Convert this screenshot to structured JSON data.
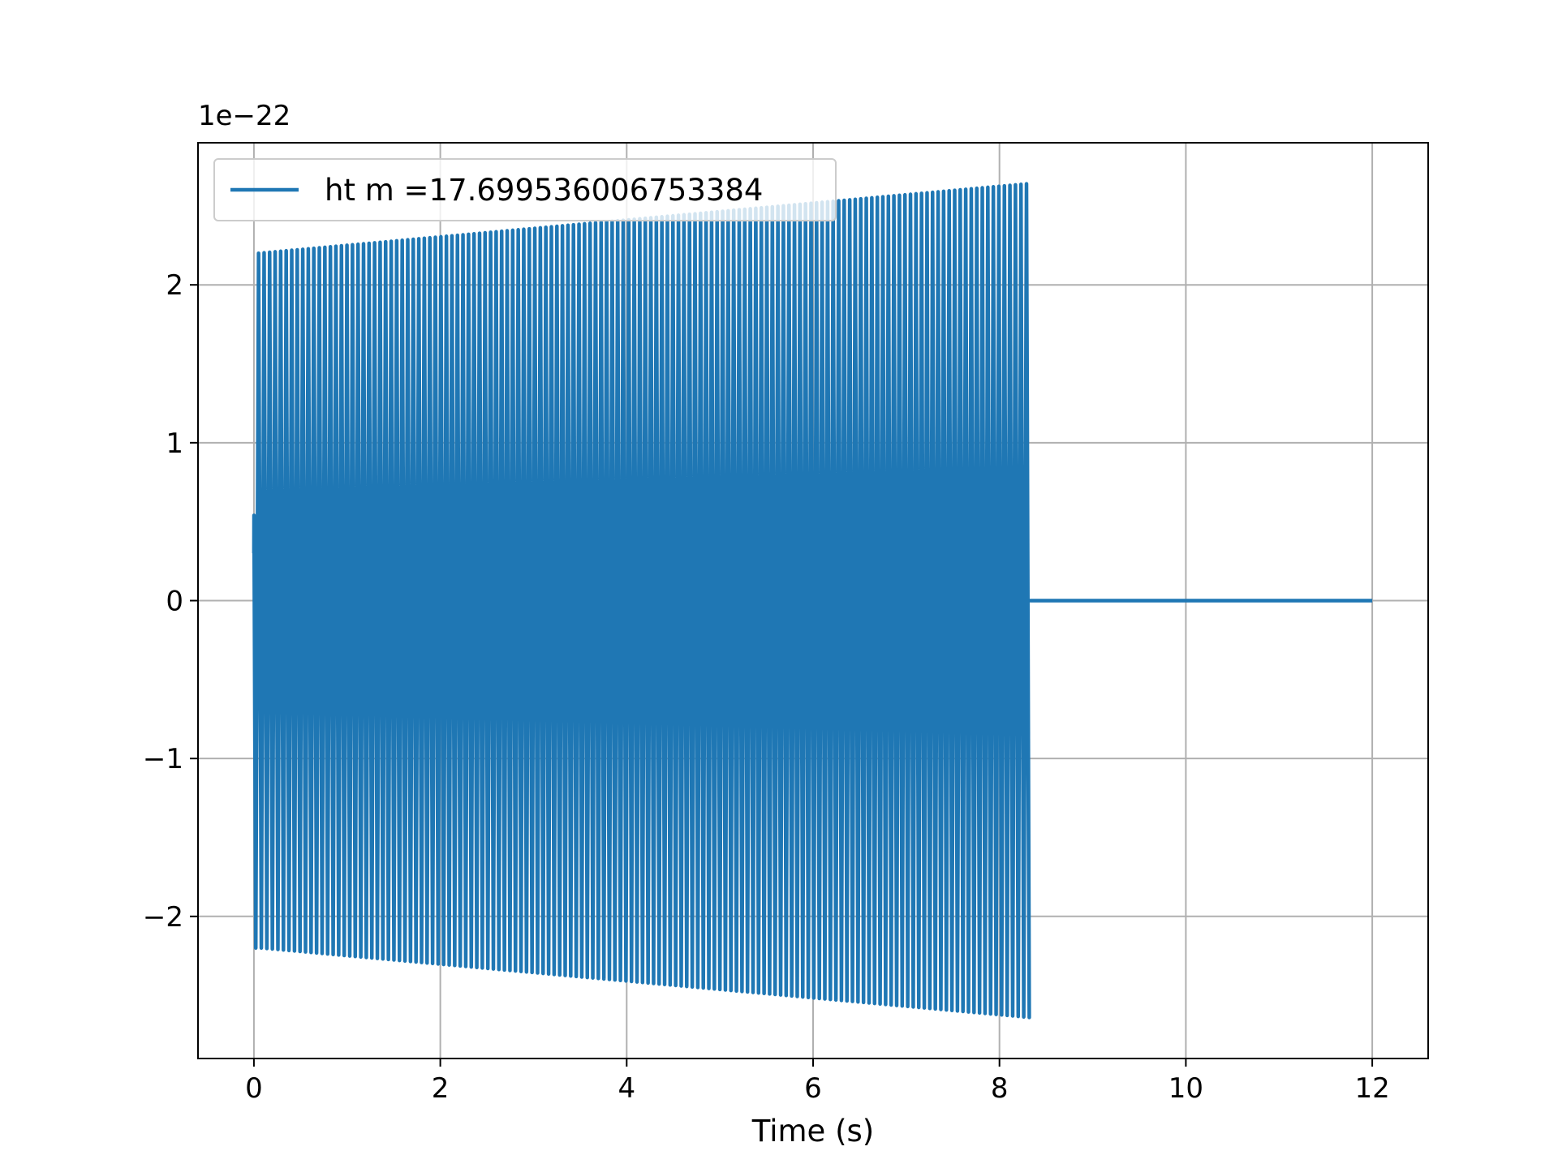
{
  "chart_data": {
    "type": "line",
    "xlabel": "Time (s)",
    "ylabel": "",
    "offset_text": "1e−22",
    "xlim": [
      -0.6,
      12.6
    ],
    "ylim": [
      -2.9,
      2.9
    ],
    "xticks": [
      0,
      2,
      4,
      6,
      8,
      10,
      12
    ],
    "xtick_labels": [
      "0",
      "2",
      "4",
      "6",
      "8",
      "10",
      "12"
    ],
    "yticks": [
      -2,
      -1,
      0,
      1,
      2
    ],
    "ytick_labels": [
      "−2",
      "−1",
      "0",
      "1",
      "2"
    ],
    "grid": true,
    "legend_position": "upper-left",
    "series": [
      {
        "name": "ht m =17.699536006753384",
        "color": "#1f77b4",
        "envelope": {
          "t_start": 0.0,
          "t_end": 8.3,
          "amp_start": 2.2,
          "amp_end": 2.64,
          "cycles_approx": 140,
          "initial_values": [
            0.3,
            0.54,
            -2.2
          ]
        },
        "post_signal": {
          "t_start": 8.3,
          "t_end": 12.0,
          "value": 0.0
        }
      }
    ]
  }
}
